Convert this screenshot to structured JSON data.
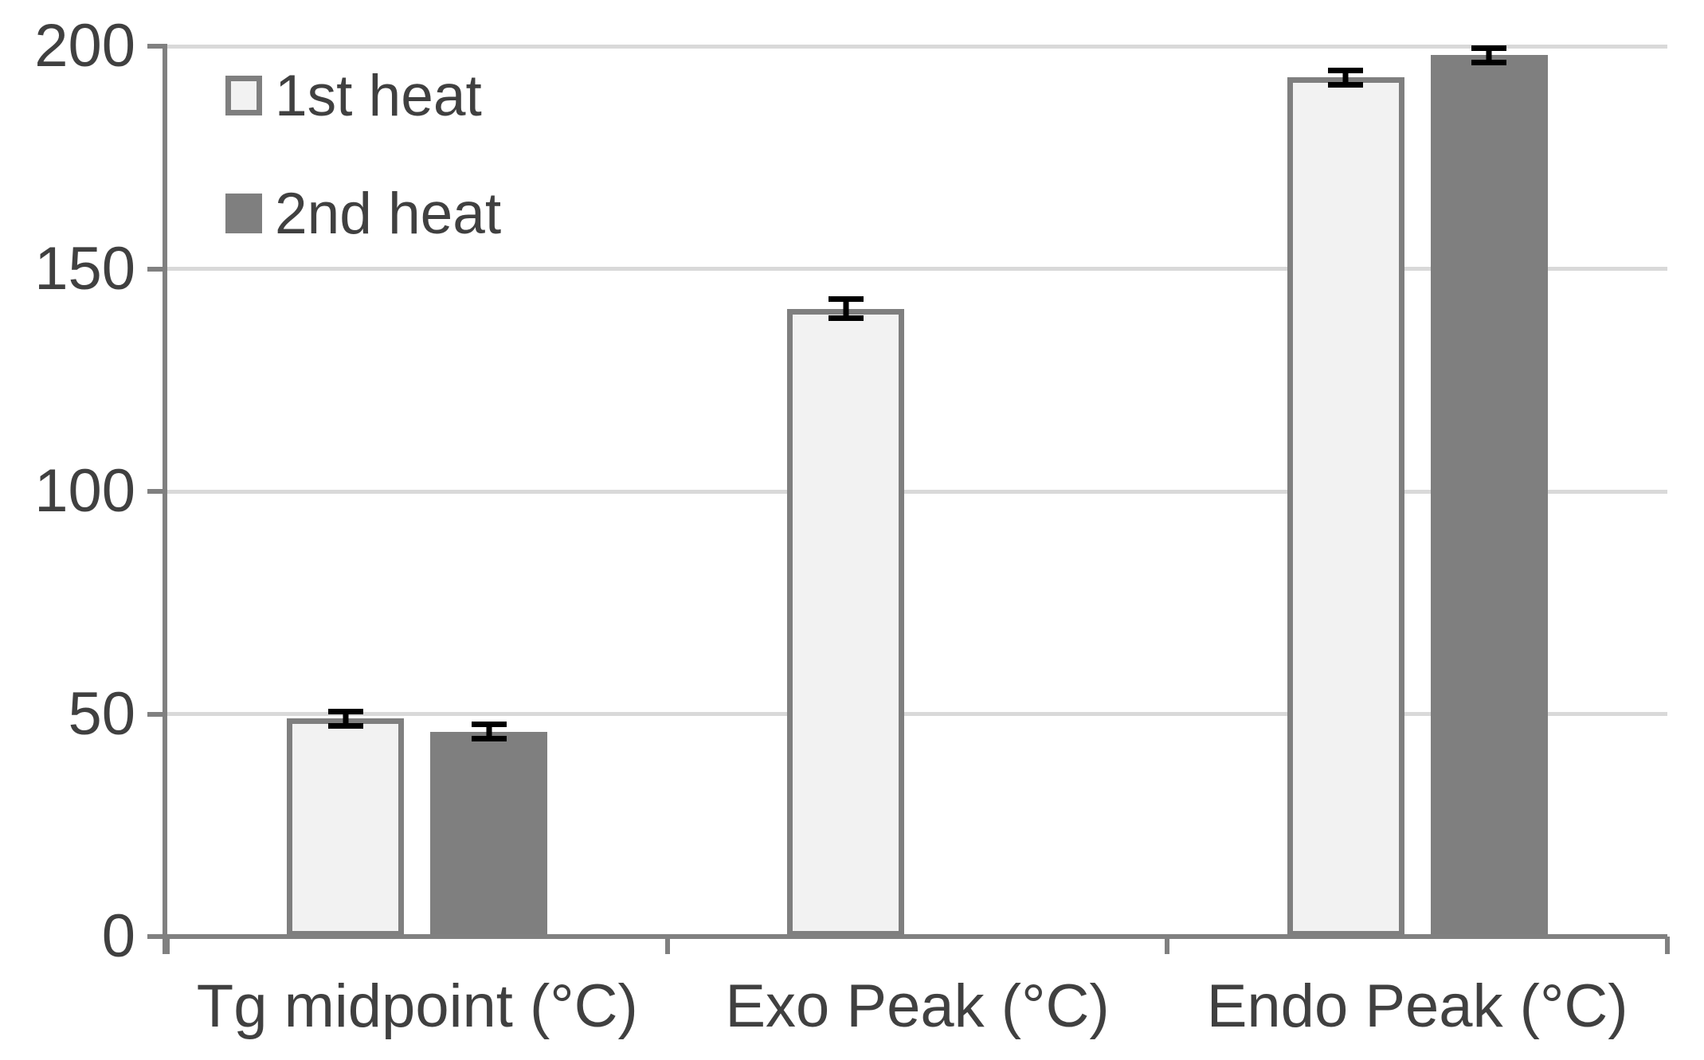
{
  "chart_data": {
    "type": "bar",
    "title": "",
    "xlabel": "",
    "ylabel": "",
    "categories": [
      "Tg midpoint (°C)",
      "Exo Peak (°C)",
      "Endo Peak (°C)"
    ],
    "series": [
      {
        "name": "1st heat",
        "values": [
          49,
          141,
          193
        ],
        "errors": [
          1,
          1.5,
          1
        ],
        "fill": "#f2f2f2",
        "border": "#7f7f7f"
      },
      {
        "name": "2nd heat",
        "values": [
          46,
          null,
          198
        ],
        "errors": [
          1,
          null,
          1
        ],
        "fill": "#7f7f7f",
        "border": null
      }
    ],
    "ylim": [
      0,
      200
    ],
    "yticks": [
      0,
      50,
      100,
      150,
      200
    ],
    "grid": true,
    "legend_position": "top-left-inside",
    "colors": {
      "background": "#ffffff",
      "axis": "#808080",
      "gridline": "#d9d9d9",
      "text": "#404040",
      "error_bar": "#000000"
    }
  }
}
